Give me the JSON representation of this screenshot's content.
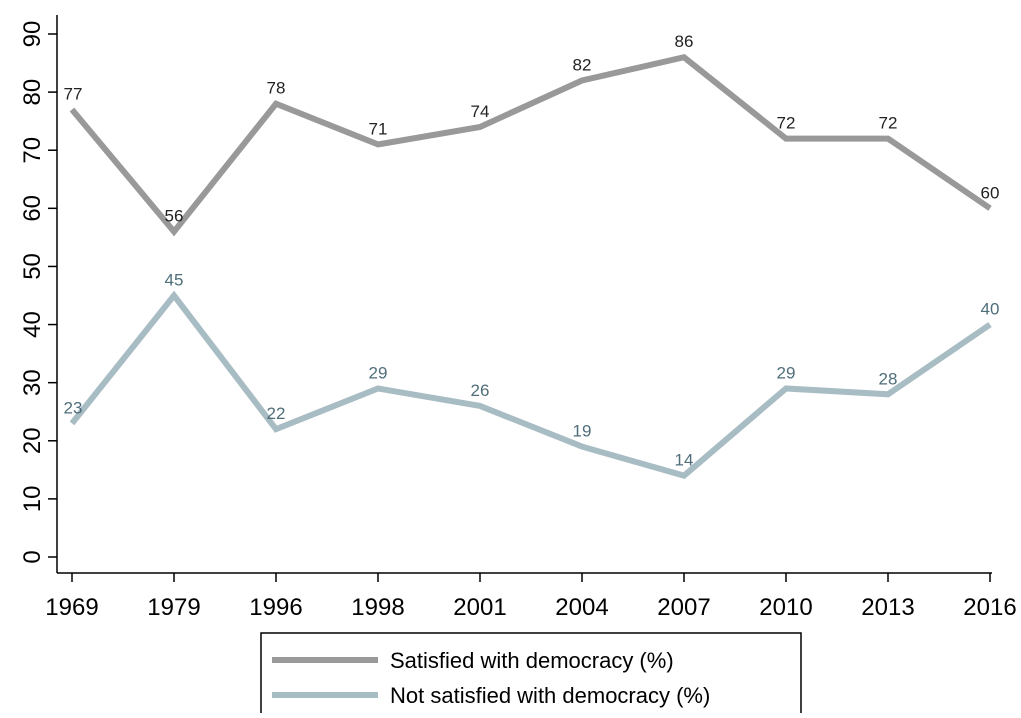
{
  "chart_data": {
    "type": "line",
    "categories": [
      "1969",
      "1979",
      "1996",
      "1998",
      "2001",
      "2004",
      "2007",
      "2010",
      "2013",
      "2016"
    ],
    "series": [
      {
        "name": "Satisfied with democracy (%)",
        "values": [
          77,
          56,
          78,
          71,
          74,
          82,
          86,
          72,
          72,
          60
        ],
        "color": "#999999",
        "label_color": "#222222"
      },
      {
        "name": "Not satisfied with democracy (%)",
        "values": [
          23,
          45,
          22,
          29,
          26,
          19,
          14,
          29,
          28,
          40
        ],
        "color": "#a8bcc4",
        "label_color": "#4f6e7a"
      }
    ],
    "title": "",
    "xlabel": "",
    "ylabel": "",
    "ylim": [
      0,
      90
    ],
    "yticks": [
      "0",
      "10",
      "20",
      "30",
      "40",
      "50",
      "60",
      "70",
      "80",
      "90"
    ],
    "grid": false,
    "legend_position": "bottom"
  }
}
